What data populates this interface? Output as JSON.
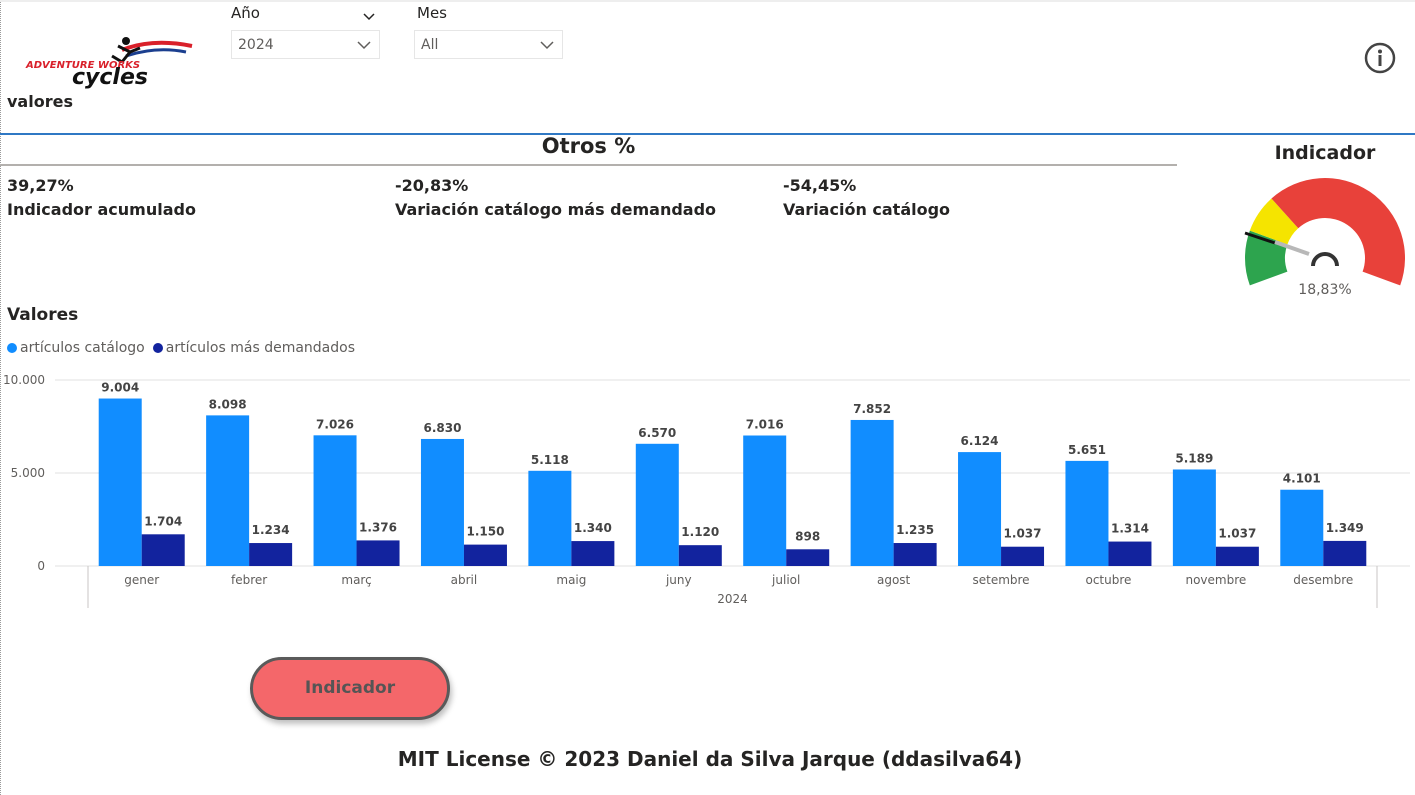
{
  "filters": {
    "year": {
      "label": "Año",
      "value": "2024"
    },
    "month": {
      "label": "Mes",
      "value": "All"
    }
  },
  "logo": {
    "line1": "ADVENTURE WORKS",
    "line2": "cycles"
  },
  "header": {
    "valores_label": "valores"
  },
  "kpis": {
    "title": "Otros %",
    "items": [
      {
        "value": "39,27%",
        "label": "Indicador acumulado"
      },
      {
        "value": "-20,83%",
        "label": "Variación catálogo más demandado"
      },
      {
        "value": "-54,45%",
        "label": "Variación catálogo"
      }
    ]
  },
  "gauge": {
    "title": "Indicador",
    "value_text": "18,83%",
    "colors": {
      "green": "#2da44e",
      "yellow": "#f5e400",
      "red": "#e8413a"
    }
  },
  "chart_data": {
    "type": "bar",
    "title": "Valores",
    "categories": [
      "gener",
      "febrer",
      "març",
      "abril",
      "maig",
      "juny",
      "juliol",
      "agost",
      "setembre",
      "octubre",
      "novembre",
      "desembre"
    ],
    "x_group_label": "2024",
    "series": [
      {
        "name": "artículos catálogo",
        "color": "#118dff",
        "values": [
          9004,
          8098,
          7026,
          6830,
          5118,
          6570,
          7016,
          7852,
          6124,
          5651,
          5189,
          4101
        ],
        "labels": [
          "9.004",
          "8.098",
          "7.026",
          "6.830",
          "5.118",
          "6.570",
          "7.016",
          "7.852",
          "6.124",
          "5.651",
          "5.189",
          "4.101"
        ]
      },
      {
        "name": "artículos más demandados",
        "color": "#12239e",
        "values": [
          1704,
          1234,
          1376,
          1150,
          1340,
          1120,
          898,
          1235,
          1037,
          1314,
          1037,
          1349
        ],
        "labels": [
          "1.704",
          "1.234",
          "1.376",
          "1.150",
          "1.340",
          "1.120",
          "898",
          "1.235",
          "1.037",
          "1.314",
          "1.037",
          "1.349"
        ]
      }
    ],
    "ylim": [
      0,
      10000
    ],
    "yticks": [
      {
        "value": 0,
        "label": "0"
      },
      {
        "value": 5000,
        "label": "5.000"
      },
      {
        "value": 10000,
        "label": "10.000"
      }
    ],
    "grid": true,
    "legend": "top-left"
  },
  "button": {
    "label": "Indicador"
  },
  "footer": "MIT License © 2023 Daniel da Silva Jarque (ddasilva64)"
}
